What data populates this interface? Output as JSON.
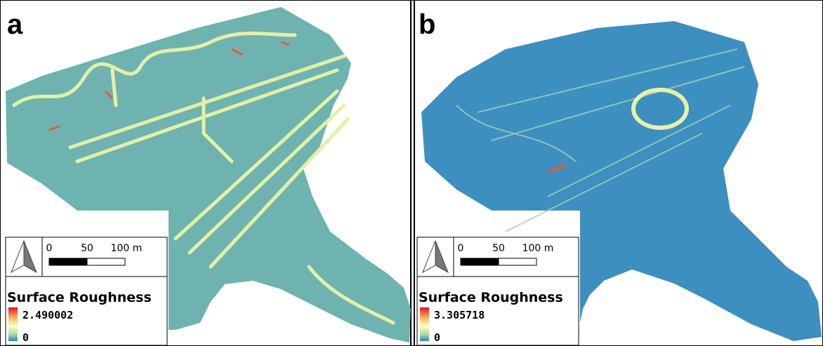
{
  "panels": [
    {
      "label": "a",
      "scale": {
        "ticks": [
          "0",
          "50",
          "100 m"
        ]
      },
      "legend": {
        "title": "Surface Roughness",
        "max": "2.490002",
        "min": "0"
      }
    },
    {
      "label": "b",
      "scale": {
        "ticks": [
          "0",
          "50",
          "100 m"
        ]
      },
      "legend": {
        "title": "Surface Roughness",
        "max": "3.305718",
        "min": "0"
      }
    }
  ]
}
